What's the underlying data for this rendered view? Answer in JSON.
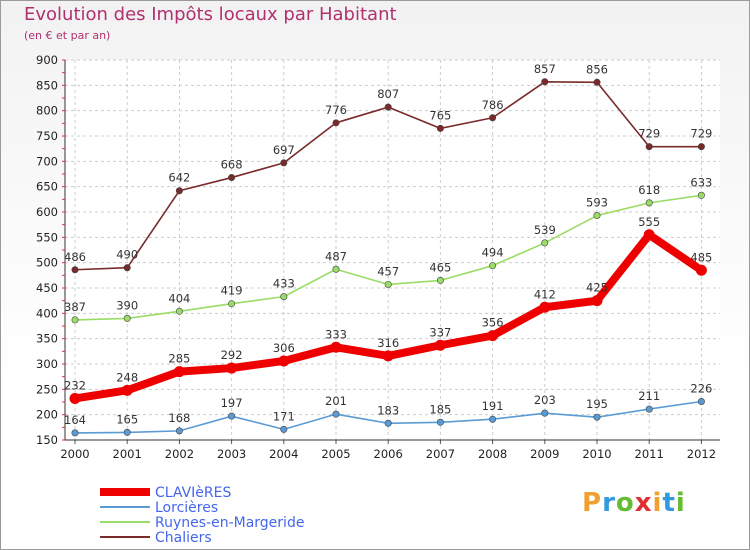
{
  "chart_data": {
    "type": "line",
    "title": "Evolution des Impôts locaux par Habitant",
    "subtitle": "(en € et par an)",
    "x": [
      "2000",
      "2001",
      "2002",
      "2003",
      "2004",
      "2005",
      "2006",
      "2007",
      "2008",
      "2009",
      "2010",
      "2011",
      "2012"
    ],
    "ylim": [
      150,
      900
    ],
    "yticks": [
      150,
      200,
      250,
      300,
      350,
      400,
      450,
      500,
      550,
      600,
      650,
      700,
      750,
      800,
      850,
      900
    ],
    "grid": true,
    "legend_position": "bottom-left",
    "series": [
      {
        "name": "CLAVIèRES",
        "color": "#ee0000",
        "values": [
          232,
          248,
          285,
          292,
          306,
          333,
          316,
          337,
          356,
          412,
          425,
          555,
          485
        ]
      },
      {
        "name": "Lorcières",
        "color": "#5b9bd5",
        "values": [
          164,
          165,
          168,
          197,
          171,
          201,
          183,
          185,
          191,
          203,
          195,
          211,
          226
        ]
      },
      {
        "name": "Ruynes-en-Margeride",
        "color": "#99dd66",
        "values": [
          387,
          390,
          404,
          419,
          433,
          487,
          457,
          465,
          494,
          539,
          593,
          618,
          633
        ]
      },
      {
        "name": "Chaliers",
        "color": "#7a2a2a",
        "values": [
          486,
          490,
          642,
          668,
          697,
          776,
          807,
          765,
          786,
          857,
          856,
          729,
          729
        ]
      }
    ]
  },
  "logo": {
    "letters": [
      "P",
      "r",
      "o",
      "x",
      "i",
      "t",
      "i"
    ],
    "colors": [
      "#f0a030",
      "#3399dd",
      "#66bb33",
      "#e03030",
      "#f0a030",
      "#3399dd",
      "#66bb33"
    ]
  }
}
